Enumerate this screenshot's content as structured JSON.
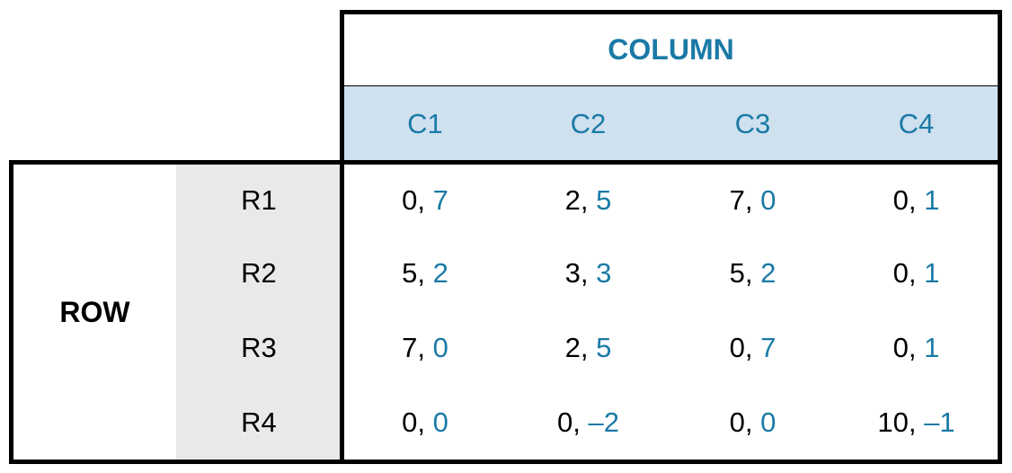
{
  "column_player": {
    "label": "COLUMN"
  },
  "row_player": {
    "label": "ROW"
  },
  "columns": [
    "C1",
    "C2",
    "C3",
    "C4"
  ],
  "rows": [
    {
      "label": "R1",
      "payoffs": [
        [
          "0",
          "7"
        ],
        [
          "2",
          "5"
        ],
        [
          "7",
          "0"
        ],
        [
          "0",
          "1"
        ]
      ]
    },
    {
      "label": "R2",
      "payoffs": [
        [
          "5",
          "2"
        ],
        [
          "3",
          "3"
        ],
        [
          "5",
          "2"
        ],
        [
          "0",
          "1"
        ]
      ]
    },
    {
      "label": "R3",
      "payoffs": [
        [
          "7",
          "0"
        ],
        [
          "2",
          "5"
        ],
        [
          "0",
          "7"
        ],
        [
          "0",
          "1"
        ]
      ]
    },
    {
      "label": "R4",
      "payoffs": [
        [
          "0",
          "0"
        ],
        [
          "0",
          "–2"
        ],
        [
          "0",
          "0"
        ],
        [
          "10",
          "–1"
        ]
      ]
    }
  ],
  "colors": {
    "column_accent": "#1a7aa6",
    "header_fill": "#cfe0ee",
    "row_header_fill": "#e8e9eb"
  }
}
